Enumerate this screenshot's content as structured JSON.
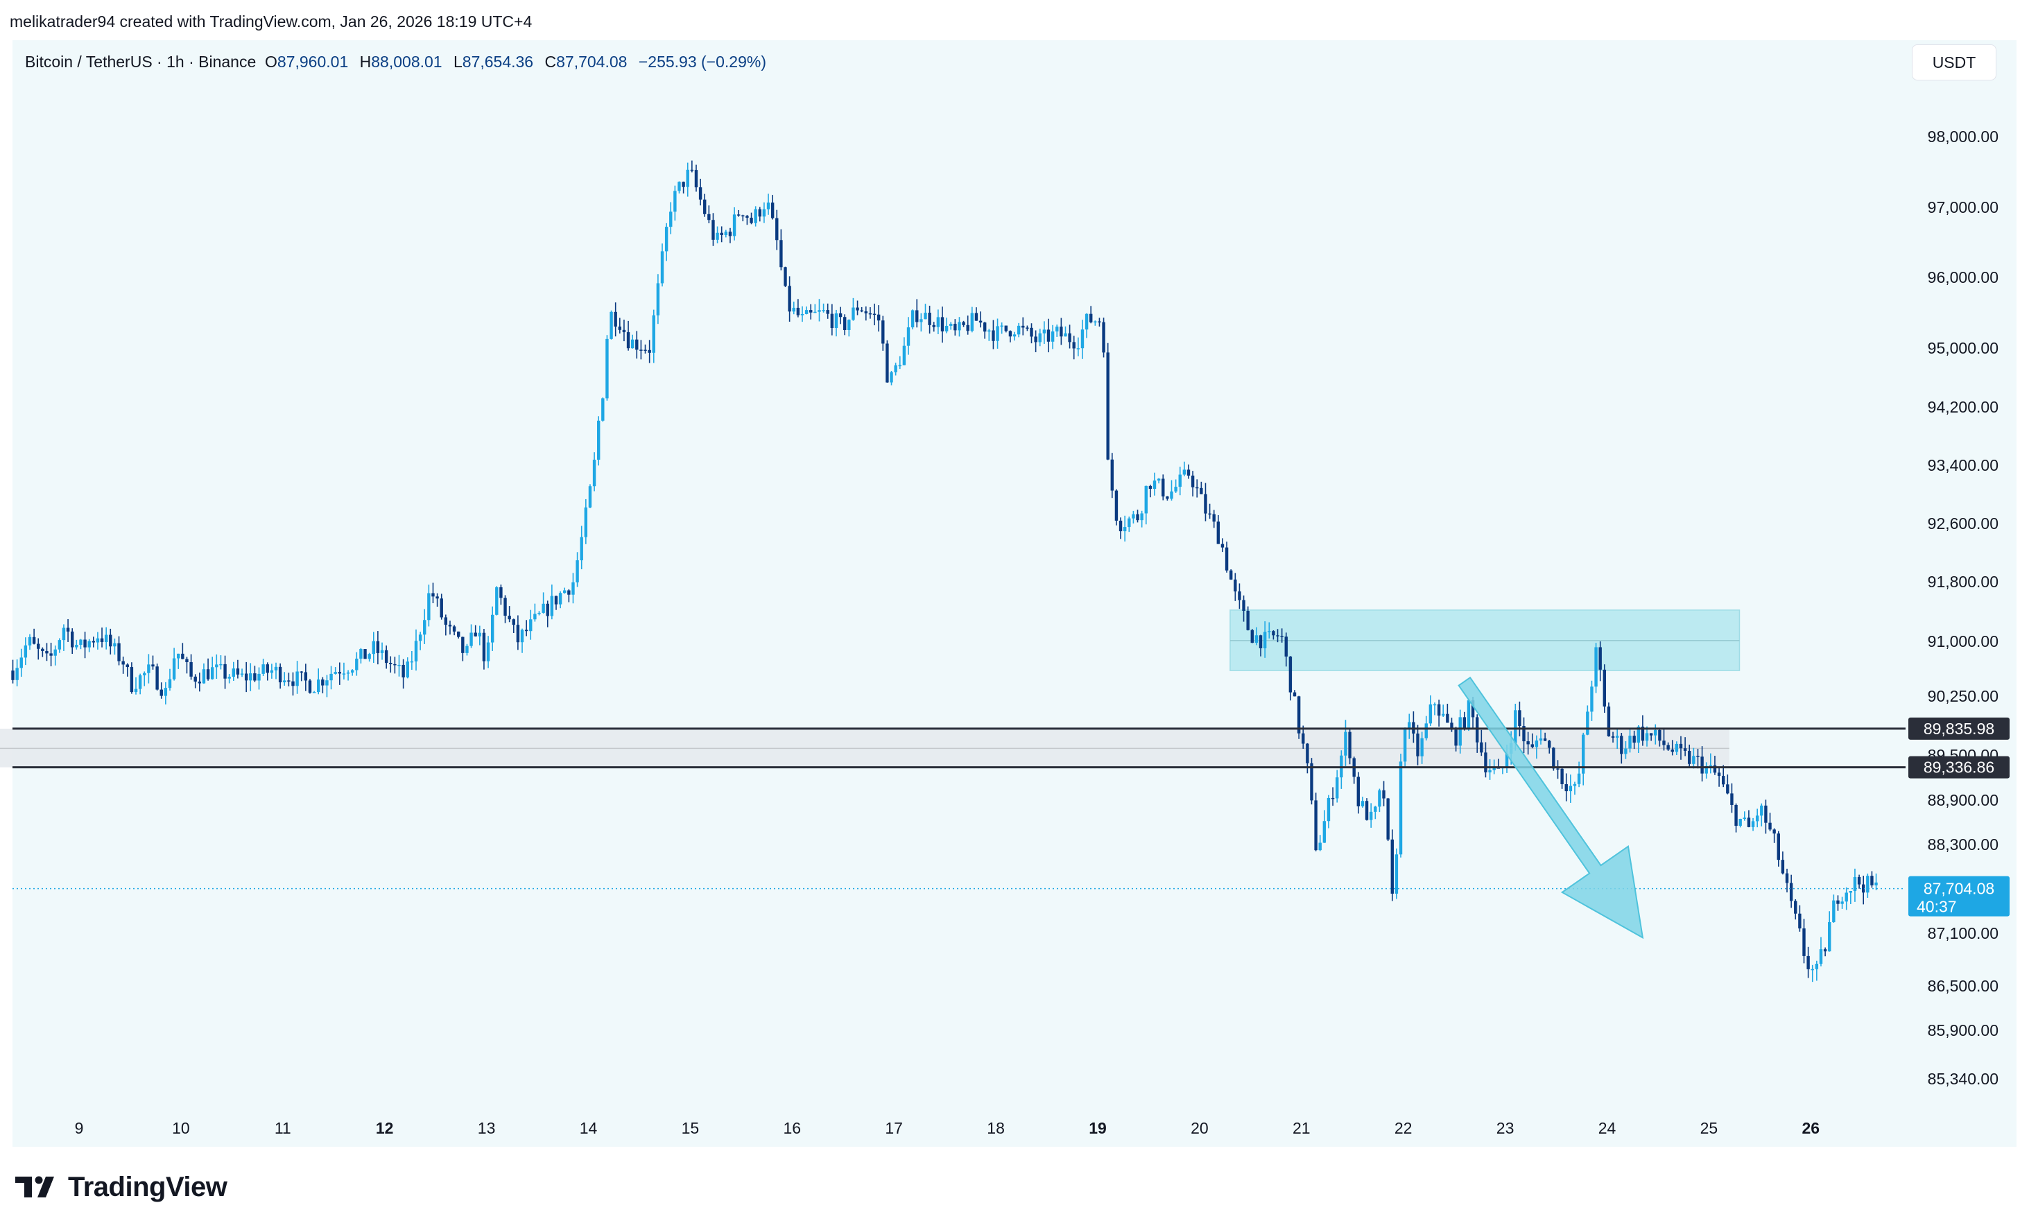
{
  "header": {
    "attribution": "melikatrader94 created with TradingView.com, Jan 26, 2026 18:19 UTC+4"
  },
  "legend": {
    "symbol": "Bitcoin / TetherUS · 1h · Binance",
    "open_label": "O",
    "open": "87,960.01",
    "high_label": "H",
    "high": "88,008.01",
    "low_label": "L",
    "low": "87,654.36",
    "close_label": "C",
    "close": "87,704.08",
    "change": "−255.93 (−0.29%)"
  },
  "currency": "USDT",
  "footer": {
    "brand": "TradingView"
  },
  "colors": {
    "up": "#1ea7e4",
    "down": "#0a3a80",
    "pane_bg": "#f0f9fb",
    "zone_fill": "#b3e7ee",
    "arrow": "#7fd5e6",
    "price_tag": "#1ea7e4",
    "level_tag": "#2a2e39"
  },
  "chart_data": {
    "type": "candlestick",
    "symbol": "Bitcoin / TetherUS",
    "interval": "1h",
    "y_ticks": [
      98000,
      97000,
      96000,
      95000,
      94200,
      93400,
      92600,
      91800,
      91000,
      90250,
      89500,
      88900,
      88300,
      87100,
      86500,
      85900,
      85340
    ],
    "y_tick_labels": [
      "98,000.00",
      "97,000.00",
      "96,000.00",
      "95,000.00",
      "94,200.00",
      "93,400.00",
      "92,600.00",
      "91,800.00",
      "91,000.00",
      "90,250.00",
      "89,500.00",
      "88,900.00",
      "88,300.00",
      "87,100.00",
      "86,500.00",
      "85,900.00",
      "85,340.00"
    ],
    "x_ticks": [
      {
        "label": "9",
        "day": 9,
        "bold": false
      },
      {
        "label": "10",
        "day": 10,
        "bold": false
      },
      {
        "label": "11",
        "day": 11,
        "bold": false
      },
      {
        "label": "12",
        "day": 12,
        "bold": true
      },
      {
        "label": "13",
        "day": 13,
        "bold": false
      },
      {
        "label": "14",
        "day": 14,
        "bold": false
      },
      {
        "label": "15",
        "day": 15,
        "bold": false
      },
      {
        "label": "16",
        "day": 16,
        "bold": false
      },
      {
        "label": "17",
        "day": 17,
        "bold": false
      },
      {
        "label": "18",
        "day": 18,
        "bold": false
      },
      {
        "label": "19",
        "day": 19,
        "bold": true
      },
      {
        "label": "20",
        "day": 20,
        "bold": false
      },
      {
        "label": "21",
        "day": 21,
        "bold": false
      },
      {
        "label": "22",
        "day": 22,
        "bold": false
      },
      {
        "label": "23",
        "day": 23,
        "bold": false
      },
      {
        "label": "24",
        "day": 24,
        "bold": false
      },
      {
        "label": "25",
        "day": 25,
        "bold": false
      },
      {
        "label": "26",
        "day": 26,
        "bold": true
      }
    ],
    "price_path": [
      [
        8.35,
        90600
      ],
      [
        8.5,
        91000
      ],
      [
        8.7,
        90700
      ],
      [
        8.85,
        91200
      ],
      [
        9.0,
        90900
      ],
      [
        9.2,
        91100
      ],
      [
        9.45,
        90700
      ],
      [
        9.5,
        90400
      ],
      [
        9.7,
        90600
      ],
      [
        9.85,
        90300
      ],
      [
        9.95,
        90900
      ],
      [
        10.1,
        90500
      ],
      [
        10.3,
        90600
      ],
      [
        10.6,
        90500
      ],
      [
        10.9,
        90600
      ],
      [
        11.1,
        90500
      ],
      [
        11.3,
        90400
      ],
      [
        11.5,
        90600
      ],
      [
        11.7,
        90700
      ],
      [
        11.9,
        90900
      ],
      [
        12.05,
        90700
      ],
      [
        12.2,
        90500
      ],
      [
        12.3,
        90900
      ],
      [
        12.45,
        91700
      ],
      [
        12.6,
        91200
      ],
      [
        12.8,
        90800
      ],
      [
        12.9,
        91200
      ],
      [
        13.0,
        90700
      ],
      [
        13.1,
        91700
      ],
      [
        13.3,
        91000
      ],
      [
        13.5,
        91300
      ],
      [
        13.7,
        91600
      ],
      [
        13.85,
        91800
      ],
      [
        13.95,
        92500
      ],
      [
        14.05,
        93300
      ],
      [
        14.1,
        94000
      ],
      [
        14.15,
        94500
      ],
      [
        14.2,
        95500
      ],
      [
        14.3,
        95400
      ],
      [
        14.4,
        95100
      ],
      [
        14.6,
        95000
      ],
      [
        14.7,
        96000
      ],
      [
        14.8,
        97000
      ],
      [
        14.9,
        97300
      ],
      [
        15.0,
        97500
      ],
      [
        15.1,
        97100
      ],
      [
        15.25,
        96500
      ],
      [
        15.4,
        96700
      ],
      [
        15.5,
        97000
      ],
      [
        15.6,
        96800
      ],
      [
        15.75,
        97100
      ],
      [
        15.85,
        96500
      ],
      [
        15.95,
        95600
      ],
      [
        16.1,
        95400
      ],
      [
        16.3,
        95500
      ],
      [
        16.5,
        95300
      ],
      [
        16.65,
        95600
      ],
      [
        16.85,
        95400
      ],
      [
        16.95,
        94500
      ],
      [
        17.1,
        95000
      ],
      [
        17.2,
        95500
      ],
      [
        17.4,
        95400
      ],
      [
        17.6,
        95200
      ],
      [
        17.8,
        95400
      ],
      [
        18.0,
        95200
      ],
      [
        18.2,
        95300
      ],
      [
        18.4,
        95100
      ],
      [
        18.6,
        95200
      ],
      [
        18.8,
        95100
      ],
      [
        18.9,
        95400
      ],
      [
        19.05,
        95400
      ],
      [
        19.1,
        93400
      ],
      [
        19.2,
        92600
      ],
      [
        19.4,
        92700
      ],
      [
        19.5,
        93200
      ],
      [
        19.7,
        93000
      ],
      [
        19.9,
        93300
      ],
      [
        20.05,
        92800
      ],
      [
        20.2,
        92400
      ],
      [
        20.35,
        91600
      ],
      [
        20.5,
        91100
      ],
      [
        20.65,
        91000
      ],
      [
        20.8,
        91100
      ],
      [
        20.95,
        90000
      ],
      [
        21.05,
        89400
      ],
      [
        21.15,
        88200
      ],
      [
        21.3,
        89000
      ],
      [
        21.45,
        89800
      ],
      [
        21.55,
        88900
      ],
      [
        21.7,
        88600
      ],
      [
        21.8,
        89100
      ],
      [
        21.9,
        87400
      ],
      [
        22.0,
        90000
      ],
      [
        22.15,
        89500
      ],
      [
        22.3,
        90200
      ],
      [
        22.5,
        89700
      ],
      [
        22.65,
        90100
      ],
      [
        22.8,
        89400
      ],
      [
        22.95,
        89200
      ],
      [
        23.1,
        90000
      ],
      [
        23.25,
        89500
      ],
      [
        23.35,
        89800
      ],
      [
        23.55,
        89200
      ],
      [
        23.7,
        89000
      ],
      [
        23.8,
        90000
      ],
      [
        23.9,
        90900
      ],
      [
        24.0,
        89800
      ],
      [
        24.15,
        89600
      ],
      [
        24.3,
        89800
      ],
      [
        24.5,
        89700
      ],
      [
        24.7,
        89500
      ],
      [
        24.9,
        89400
      ],
      [
        25.1,
        89200
      ],
      [
        25.25,
        88700
      ],
      [
        25.4,
        88500
      ],
      [
        25.5,
        88800
      ],
      [
        25.65,
        88300
      ],
      [
        25.8,
        87500
      ],
      [
        25.95,
        86800
      ],
      [
        26.05,
        86600
      ],
      [
        26.15,
        87000
      ],
      [
        26.25,
        87600
      ],
      [
        26.45,
        87800
      ],
      [
        26.65,
        87704
      ]
    ],
    "current_price": "87,704.08",
    "countdown": "40:37",
    "levels": [
      {
        "label": "89,835.98",
        "price": 89835.98
      },
      {
        "label": "89,336.86",
        "price": 89336.86
      }
    ],
    "support_zone": {
      "from_day": 8.0,
      "to_day": 25.2,
      "top": 89835.98,
      "bottom": 89336.86,
      "mid": 89585
    },
    "resistance_zone": {
      "from_day": 20.3,
      "to_day": 25.3,
      "top": 91420,
      "bottom": 90600,
      "mid": 91010
    },
    "arrow": {
      "from_day": 22.6,
      "from_price": 90450,
      "to_day": 24.35,
      "to_price": 87050
    }
  }
}
